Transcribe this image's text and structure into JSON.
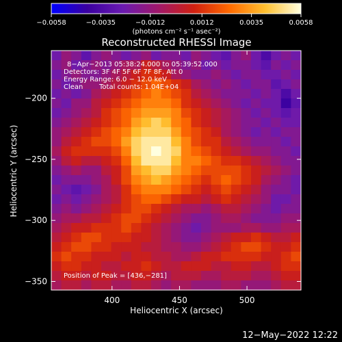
{
  "chart_data": {
    "type": "heatmap",
    "title": "Reconstructed RHESSI Image",
    "xlabel": "Heliocentric X (arcsec)",
    "ylabel": "Heliocentric Y (arcsec)",
    "xlim": [
      355,
      540
    ],
    "ylim": [
      -357,
      -161
    ],
    "x_ticks": [
      400,
      450,
      500
    ],
    "x_tick_labels": [
      "400",
      "450",
      "500"
    ],
    "y_ticks": [
      -200,
      -250,
      -300,
      -350
    ],
    "y_tick_labels": [
      "−200",
      "−250",
      "−300",
      "−350"
    ],
    "colorbar": {
      "range": [
        -0.0058,
        0.0058
      ],
      "ticks": [
        -0.0058,
        -0.0035,
        -0.0012,
        0.0012,
        0.0035,
        0.0058
      ],
      "tick_labels": [
        "−0.0058",
        "−0.0035",
        "−0.0012",
        "0.0012",
        "0.0035",
        "0.0058"
      ],
      "units_label": "(photons cm⁻² s⁻¹ asec⁻²)",
      "colors": [
        "#0000ff",
        "#3a00a0",
        "#6a1ab0",
        "#a0186a",
        "#d02010",
        "#ff6a00",
        "#ffc030",
        "#ffffe0"
      ]
    },
    "annotations": {
      "time_range": "8−Apr−2013 05:38:24.000 to 05:39:52.000",
      "detectors": "Detectors: 3F 4F 5F 6F 7F 8F, Att 0",
      "energy_range": "Energy Range: 6.0 − 12.0 keV",
      "clean": "Clean",
      "total_counts": "Total counts: 1.04E+04",
      "peak": "Position of Peak = [436,−281]"
    },
    "peak_position": [
      436,
      -281
    ],
    "z": [
      [
        -0.4,
        -0.2,
        -0.3,
        -0.5,
        -0.3,
        -0.2,
        -0.3,
        -0.4,
        -0.3,
        -0.2,
        -0.4,
        -0.3,
        -0.3,
        -0.4,
        -0.2,
        -0.3,
        -0.4,
        -0.5,
        -0.3,
        -0.2,
        -0.4,
        -0.6,
        -0.4,
        -0.3,
        -0.4
      ],
      [
        -0.3,
        -0.2,
        -0.4,
        -0.3,
        -0.2,
        -0.3,
        -0.2,
        -0.1,
        -0.1,
        0.1,
        0.0,
        -0.1,
        -0.2,
        -0.3,
        -0.2,
        -0.4,
        -0.3,
        -0.4,
        -0.3,
        -0.3,
        -0.4,
        -0.5,
        -0.3,
        -0.4,
        -0.3
      ],
      [
        -0.4,
        -0.3,
        -0.2,
        -0.3,
        -0.3,
        -0.2,
        -0.1,
        0.0,
        0.1,
        0.2,
        0.2,
        0.1,
        -0.1,
        -0.2,
        -0.3,
        -0.3,
        -0.2,
        -0.3,
        -0.4,
        -0.3,
        -0.3,
        -0.4,
        -0.4,
        -0.3,
        -0.4
      ],
      [
        -0.3,
        -0.4,
        -0.3,
        -0.2,
        -0.2,
        -0.1,
        0.0,
        0.1,
        0.2,
        0.3,
        0.4,
        0.3,
        0.2,
        0.1,
        -0.1,
        -0.2,
        -0.3,
        -0.2,
        -0.3,
        -0.4,
        -0.3,
        -0.3,
        -0.5,
        -0.4,
        -0.3
      ],
      [
        -0.4,
        -0.3,
        -0.4,
        -0.3,
        -0.1,
        0.0,
        0.1,
        0.2,
        0.3,
        0.4,
        0.5,
        0.4,
        0.3,
        0.2,
        0.0,
        -0.1,
        -0.2,
        -0.3,
        -0.3,
        -0.3,
        -0.4,
        -0.3,
        -0.4,
        -0.6,
        -0.4
      ],
      [
        -0.3,
        -0.4,
        -0.2,
        -0.2,
        0.0,
        0.1,
        0.2,
        0.3,
        0.4,
        0.5,
        0.5,
        0.5,
        0.4,
        0.2,
        0.1,
        0.0,
        -0.1,
        -0.2,
        -0.3,
        -0.4,
        -0.3,
        -0.4,
        -0.4,
        -0.7,
        -0.5
      ],
      [
        -0.4,
        -0.3,
        -0.2,
        -0.1,
        0.0,
        0.2,
        0.3,
        0.4,
        0.5,
        0.6,
        0.6,
        0.6,
        0.5,
        0.3,
        0.2,
        0.1,
        0.0,
        -0.1,
        -0.2,
        -0.3,
        -0.4,
        -0.3,
        -0.4,
        -0.5,
        -0.4
      ],
      [
        -0.3,
        -0.2,
        -0.1,
        0.0,
        0.1,
        0.2,
        0.3,
        0.4,
        0.6,
        0.7,
        0.8,
        0.7,
        0.5,
        0.4,
        0.2,
        0.1,
        0.0,
        -0.1,
        -0.2,
        -0.3,
        -0.3,
        -0.4,
        -0.3,
        -0.4,
        -0.4
      ],
      [
        -0.2,
        -0.1,
        0.0,
        0.1,
        0.2,
        0.3,
        0.4,
        0.5,
        0.7,
        0.8,
        0.8,
        0.8,
        0.6,
        0.4,
        0.3,
        0.2,
        0.1,
        -0.1,
        -0.2,
        -0.3,
        -0.4,
        -0.3,
        -0.4,
        -0.3,
        -0.3
      ],
      [
        -0.2,
        0.0,
        0.1,
        0.2,
        0.3,
        0.3,
        0.4,
        0.6,
        0.8,
        0.9,
        0.9,
        0.9,
        0.7,
        0.5,
        0.3,
        0.2,
        0.2,
        0.0,
        -0.1,
        -0.2,
        -0.3,
        -0.3,
        -0.3,
        -0.4,
        -0.3
      ],
      [
        -0.1,
        0.1,
        0.2,
        0.2,
        0.2,
        0.2,
        0.3,
        0.5,
        0.8,
        0.9,
        1.0,
        0.9,
        0.8,
        0.5,
        0.4,
        0.3,
        0.2,
        0.1,
        0.0,
        -0.1,
        -0.2,
        -0.2,
        -0.3,
        -0.3,
        -0.4
      ],
      [
        -0.2,
        0.0,
        0.1,
        0.0,
        0.0,
        0.1,
        0.2,
        0.4,
        0.7,
        0.9,
        0.9,
        0.9,
        0.7,
        0.5,
        0.5,
        0.4,
        0.3,
        0.2,
        0.2,
        0.1,
        0.0,
        -0.1,
        -0.2,
        -0.3,
        -0.3
      ],
      [
        -0.3,
        -0.2,
        -0.1,
        -0.2,
        -0.2,
        0.0,
        0.1,
        0.3,
        0.6,
        0.7,
        0.8,
        0.8,
        0.6,
        0.5,
        0.4,
        0.3,
        0.3,
        0.3,
        0.3,
        0.2,
        0.1,
        0.0,
        -0.1,
        -0.2,
        -0.3
      ],
      [
        -0.4,
        -0.3,
        -0.3,
        -0.3,
        -0.2,
        -0.1,
        0.1,
        0.3,
        0.5,
        0.6,
        0.7,
        0.6,
        0.5,
        0.4,
        0.3,
        0.2,
        0.3,
        0.4,
        0.3,
        0.2,
        0.1,
        -0.1,
        -0.2,
        -0.3,
        -0.4
      ],
      [
        -0.3,
        -0.4,
        -0.5,
        -0.4,
        -0.3,
        -0.1,
        0.0,
        0.2,
        0.4,
        0.5,
        0.5,
        0.5,
        0.4,
        0.3,
        0.2,
        0.1,
        0.2,
        0.3,
        0.2,
        0.1,
        0.0,
        -0.2,
        -0.3,
        -0.3,
        -0.4
      ],
      [
        -0.4,
        -0.3,
        -0.4,
        -0.3,
        -0.2,
        -0.1,
        0.0,
        0.2,
        0.3,
        0.4,
        0.4,
        0.3,
        0.2,
        0.1,
        0.1,
        0.0,
        0.1,
        0.2,
        0.1,
        0.0,
        -0.1,
        -0.2,
        -0.4,
        -0.4,
        -0.3
      ],
      [
        -0.3,
        -0.2,
        -0.3,
        -0.2,
        -0.1,
        0.0,
        0.1,
        0.2,
        0.3,
        0.3,
        0.2,
        0.1,
        0.0,
        -0.1,
        -0.1,
        -0.2,
        -0.1,
        0.0,
        0.0,
        -0.1,
        -0.2,
        -0.3,
        -0.4,
        -0.3,
        -0.3
      ],
      [
        -0.2,
        -0.1,
        -0.1,
        0.0,
        0.0,
        0.1,
        0.2,
        0.3,
        0.3,
        0.2,
        0.1,
        0.0,
        -0.1,
        -0.2,
        -0.3,
        -0.3,
        -0.2,
        -0.1,
        -0.1,
        -0.2,
        -0.3,
        -0.3,
        -0.3,
        -0.2,
        -0.2
      ],
      [
        -0.1,
        0.0,
        0.1,
        0.1,
        0.2,
        0.2,
        0.2,
        0.3,
        0.2,
        0.1,
        0.0,
        -0.1,
        -0.2,
        -0.3,
        -0.4,
        -0.3,
        -0.2,
        -0.2,
        -0.2,
        -0.1,
        -0.1,
        -0.2,
        -0.2,
        -0.1,
        -0.1
      ],
      [
        0.0,
        0.1,
        0.2,
        0.3,
        0.3,
        0.2,
        0.2,
        0.2,
        0.1,
        0.1,
        0.0,
        -0.1,
        -0.2,
        -0.3,
        -0.3,
        -0.2,
        -0.1,
        0.0,
        0.1,
        0.1,
        0.2,
        0.1,
        0.0,
        0.0,
        0.1
      ],
      [
        0.1,
        0.2,
        0.3,
        0.3,
        0.2,
        0.2,
        0.1,
        0.1,
        0.1,
        0.0,
        0.0,
        -0.1,
        -0.1,
        -0.2,
        -0.2,
        -0.1,
        0.0,
        0.1,
        0.2,
        0.3,
        0.3,
        0.2,
        0.1,
        0.1,
        0.2
      ],
      [
        0.2,
        0.3,
        0.2,
        0.2,
        0.1,
        0.1,
        0.1,
        0.0,
        0.1,
        0.1,
        0.0,
        0.0,
        -0.1,
        -0.1,
        0.0,
        0.1,
        0.1,
        0.2,
        0.2,
        0.2,
        0.2,
        0.1,
        0.1,
        0.2,
        0.3
      ],
      [
        0.1,
        0.2,
        0.2,
        0.1,
        0.1,
        0.0,
        0.0,
        0.1,
        0.1,
        0.2,
        0.1,
        0.0,
        0.0,
        0.1,
        0.1,
        0.1,
        0.0,
        0.0,
        0.1,
        0.1,
        0.0,
        0.0,
        0.1,
        0.2,
        0.2
      ],
      [
        0.0,
        0.1,
        0.1,
        0.0,
        0.1,
        0.1,
        0.0,
        0.0,
        0.1,
        0.1,
        0.0,
        -0.1,
        0.0,
        0.0,
        0.0,
        -0.1,
        -0.1,
        0.0,
        0.0,
        0.0,
        -0.1,
        -0.1,
        0.0,
        0.1,
        0.1
      ],
      [
        -0.1,
        0.0,
        0.0,
        -0.1,
        0.0,
        0.0,
        -0.1,
        -0.1,
        0.0,
        0.0,
        -0.1,
        -0.2,
        -0.1,
        -0.1,
        -0.2,
        -0.2,
        -0.2,
        -0.1,
        -0.1,
        -0.2,
        -0.2,
        -0.2,
        -0.1,
        0.0,
        0.0
      ]
    ]
  },
  "footer": {
    "timestamp": "12−May−2022 12:22"
  }
}
